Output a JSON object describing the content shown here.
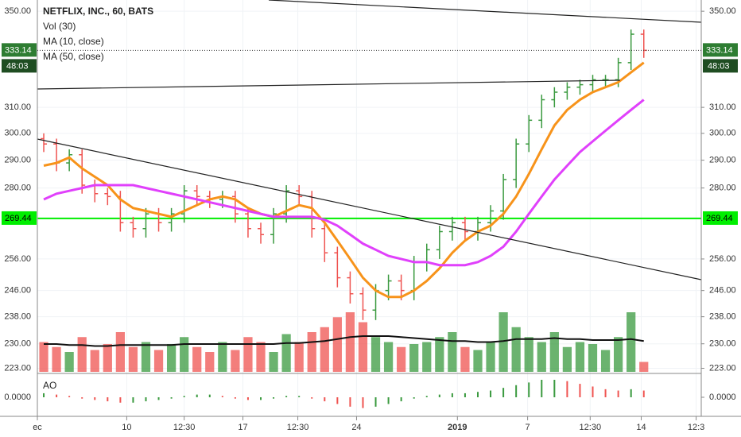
{
  "chart_data": {
    "type": "ohlc",
    "title": "NETFLIX, INC., 60, BATS",
    "log_scale": true,
    "ylim": [
      222,
      355
    ],
    "yticks": [
      {
        "value": 350,
        "label": "350.00"
      },
      {
        "value": 310,
        "label": "310.00"
      },
      {
        "value": 300,
        "label": "300.00"
      },
      {
        "value": 290,
        "label": "290.00"
      },
      {
        "value": 280,
        "label": "280.00"
      },
      {
        "value": 256,
        "label": "256.00"
      },
      {
        "value": 246,
        "label": "246.00"
      },
      {
        "value": 238,
        "label": "238.00"
      },
      {
        "value": 230,
        "label": "230.00"
      },
      {
        "value": 223,
        "label": "223.00"
      }
    ],
    "xlim": [
      -0.5,
      51.5
    ],
    "xticks": [
      {
        "value": -0.5,
        "label": "ec"
      },
      {
        "value": 6.5,
        "label": "10"
      },
      {
        "value": 11,
        "label": "12:30"
      },
      {
        "value": 15.6,
        "label": "17"
      },
      {
        "value": 19.9,
        "label": "12:30"
      },
      {
        "value": 24.5,
        "label": "24"
      },
      {
        "value": 32.4,
        "label": "2019"
      },
      {
        "value": 37.9,
        "label": "7"
      },
      {
        "value": 42.8,
        "label": "12:30"
      },
      {
        "value": 46.8,
        "label": "14"
      },
      {
        "value": 51.1,
        "label": "12:3"
      }
    ],
    "up_color": "#3a9a3f",
    "down_color": "#ef5350",
    "ohlc": {
      "open": [
        298,
        296,
        289,
        292,
        281,
        278,
        277,
        268,
        266,
        271,
        268,
        271,
        279,
        277,
        276,
        277,
        271,
        266,
        264,
        271,
        279,
        277,
        266,
        258,
        250,
        245,
        240,
        246,
        249,
        246,
        255,
        259,
        265,
        268,
        265,
        268,
        272,
        283,
        296,
        305,
        313,
        316,
        318,
        319,
        321,
        321,
        328,
        340
      ],
      "high": [
        300,
        298,
        294,
        294,
        283,
        280,
        279,
        270,
        273,
        273,
        273,
        281,
        281,
        279,
        279,
        279,
        273,
        268,
        273,
        281,
        281,
        279,
        268,
        260,
        252,
        247,
        248,
        251,
        251,
        257,
        261,
        267,
        270,
        270,
        270,
        274,
        285,
        298,
        307,
        315,
        318,
        320,
        321,
        323,
        323,
        330,
        342,
        342
      ],
      "low": [
        293,
        286,
        286,
        278,
        275,
        274,
        265,
        263,
        263,
        265,
        265,
        268,
        274,
        273,
        273,
        268,
        263,
        261,
        261,
        268,
        274,
        263,
        255,
        247,
        242,
        237,
        237,
        243,
        243,
        243,
        252,
        256,
        262,
        262,
        262,
        265,
        269,
        280,
        293,
        302,
        310,
        313,
        315,
        316,
        318,
        318,
        325,
        330
      ],
      "close": [
        296,
        289,
        292,
        281,
        278,
        277,
        268,
        266,
        271,
        268,
        271,
        279,
        277,
        276,
        277,
        271,
        266,
        264,
        271,
        279,
        277,
        266,
        258,
        250,
        245,
        240,
        246,
        249,
        246,
        255,
        259,
        265,
        268,
        265,
        268,
        272,
        283,
        296,
        305,
        313,
        316,
        318,
        319,
        321,
        321,
        328,
        340,
        333.14
      ]
    },
    "series": [
      {
        "name": "MA (10, close)",
        "color": "#f7931a",
        "values": [
          288,
          289,
          291,
          287,
          284,
          281,
          276,
          273,
          272,
          271,
          270,
          272,
          274,
          276,
          277,
          276,
          273,
          271,
          270,
          272,
          274,
          273,
          268,
          262,
          256,
          250,
          246,
          244,
          244,
          246,
          249,
          253,
          258,
          262,
          265,
          267,
          271,
          277,
          285,
          294,
          303,
          309,
          313,
          316,
          318,
          320,
          324,
          328
        ]
      },
      {
        "name": "MA (50, close)",
        "color": "#e040fb",
        "values": [
          276,
          278,
          279,
          280,
          281,
          281,
          281,
          281,
          280,
          279,
          278,
          277,
          276,
          275,
          274,
          273,
          272,
          271,
          270,
          270,
          270,
          270,
          269,
          267,
          264,
          261,
          259,
          257,
          256,
          255,
          255,
          254,
          254,
          254,
          255,
          257,
          260,
          265,
          271,
          277,
          283,
          288,
          293,
          297,
          301,
          305,
          309,
          313
        ]
      }
    ],
    "volume": {
      "name": "Vol (30)",
      "values": [
        30,
        25,
        20,
        35,
        22,
        28,
        40,
        25,
        30,
        22,
        28,
        35,
        25,
        20,
        30,
        22,
        35,
        30,
        20,
        38,
        30,
        40,
        45,
        55,
        60,
        50,
        35,
        30,
        25,
        28,
        30,
        35,
        40,
        25,
        22,
        30,
        60,
        45,
        35,
        30,
        40,
        25,
        30,
        28,
        22,
        35,
        60,
        10
      ],
      "ma": [
        28,
        28,
        27,
        27,
        26,
        26,
        27,
        27,
        27,
        27,
        27,
        28,
        28,
        28,
        28,
        28,
        28,
        28,
        28,
        29,
        29,
        30,
        31,
        33,
        35,
        36,
        36,
        36,
        35,
        34,
        33,
        32,
        31,
        31,
        30,
        30,
        31,
        33,
        33,
        33,
        34,
        33,
        33,
        32,
        32,
        32,
        33,
        31
      ]
    },
    "ao": {
      "name": "AO",
      "values": [
        3,
        2,
        1,
        -1,
        -2,
        -3,
        -4,
        -4,
        -3,
        -2,
        -1,
        1,
        2,
        2,
        1,
        -1,
        -2,
        -2,
        -1,
        1,
        1,
        -1,
        -3,
        -5,
        -7,
        -8,
        -7,
        -5,
        -3,
        -1,
        1,
        2,
        3,
        3,
        4,
        5,
        7,
        9,
        11,
        13,
        13,
        12,
        10,
        8,
        6,
        5,
        6,
        5
      ],
      "ticks": [
        {
          "value": 0,
          "label": "0.0000"
        }
      ]
    },
    "price_line": 269.44,
    "price_line_color": "#00ee00",
    "last_price": 333.14,
    "countdown": "48:03"
  }
}
